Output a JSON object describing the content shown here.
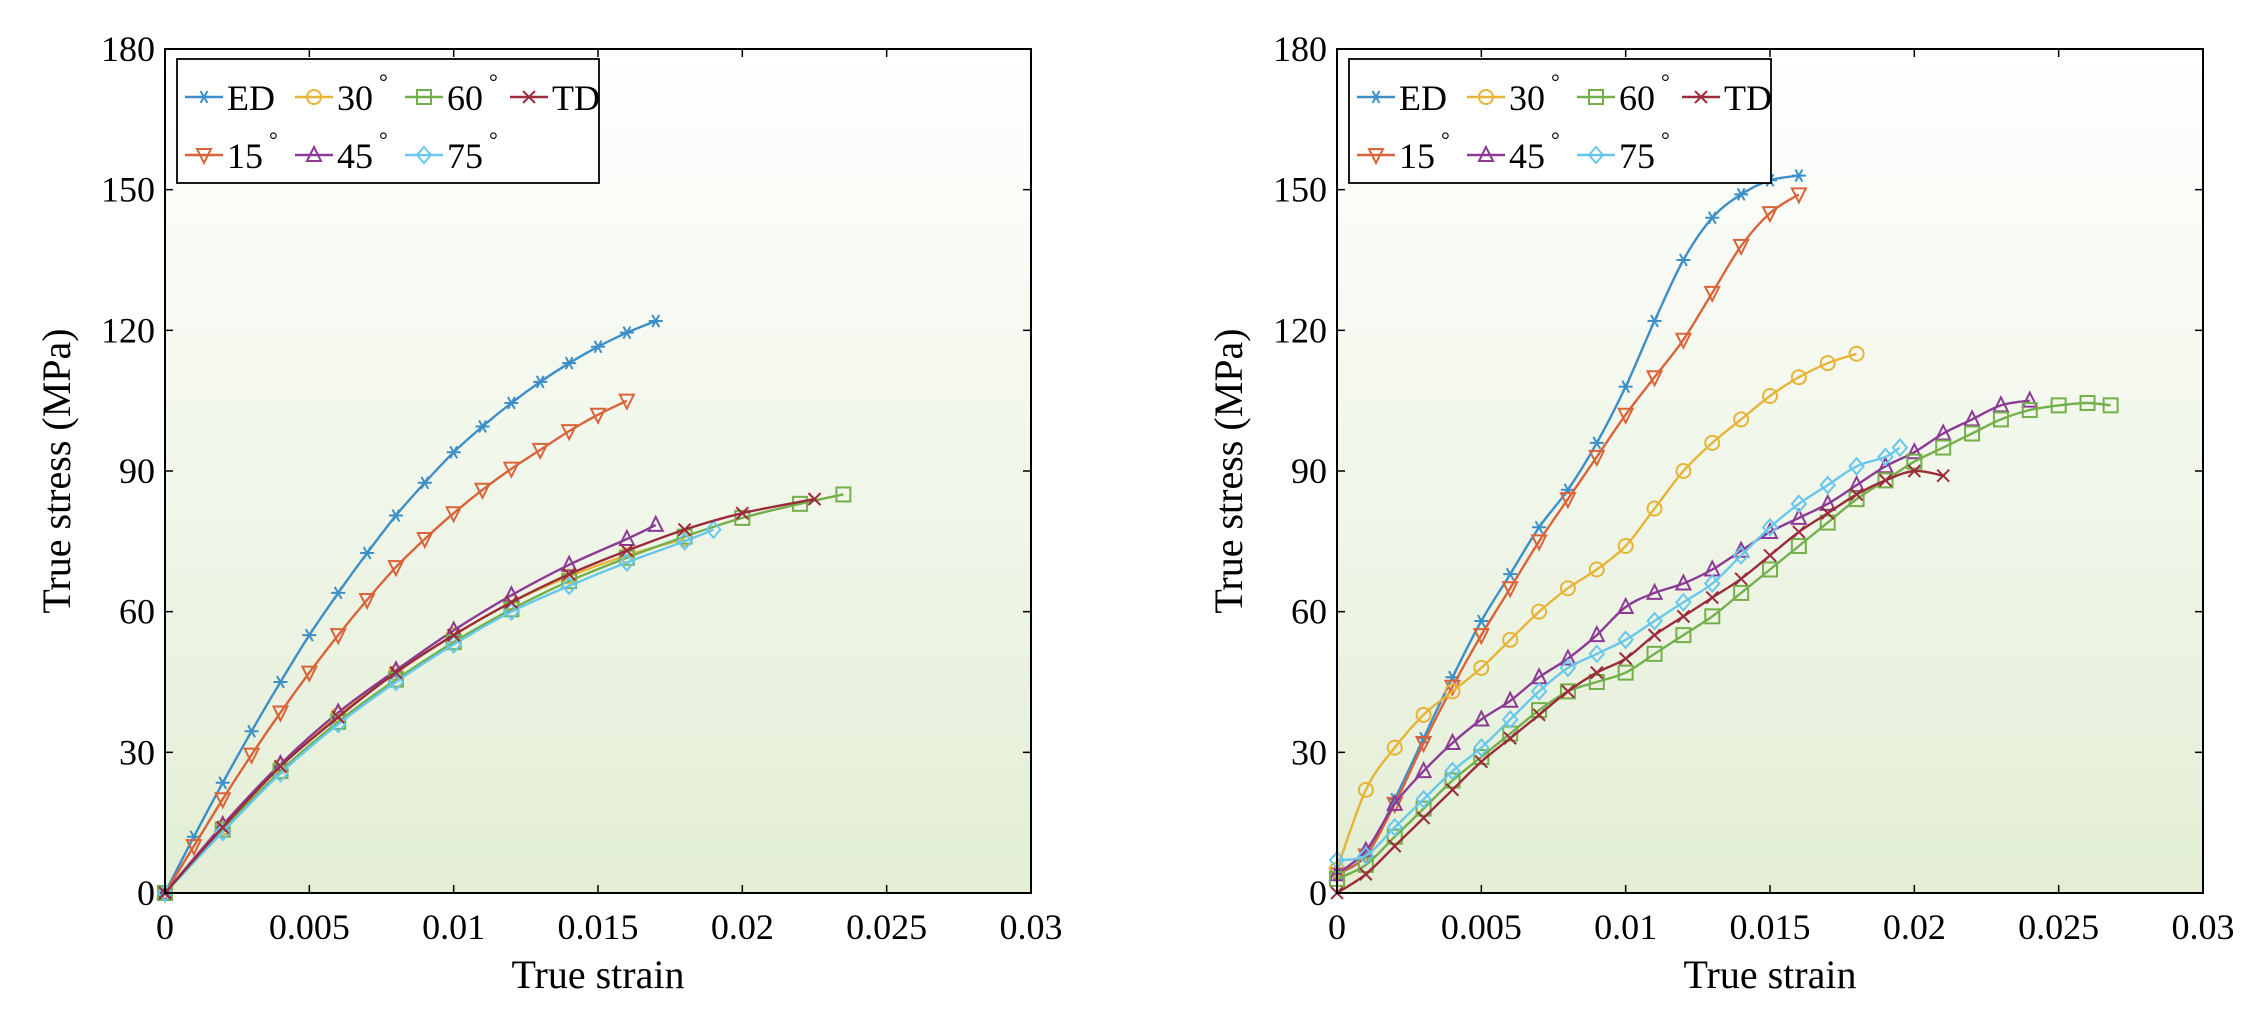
{
  "chart_data": [
    {
      "type": "line",
      "xlabel": "True strain",
      "ylabel": "True stress (MPa)",
      "xlim": [
        0,
        0.03
      ],
      "ylim": [
        0,
        180
      ],
      "xticks": [
        0,
        0.005,
        0.01,
        0.015,
        0.02,
        0.025,
        0.03
      ],
      "xtick_labels": [
        "0",
        "0.005",
        "0.01",
        "0.015",
        "0.02",
        "0.025",
        "0.03"
      ],
      "yticks": [
        0,
        30,
        60,
        90,
        120,
        150,
        180
      ],
      "ytick_labels": [
        "0",
        "30",
        "60",
        "90",
        "120",
        "150",
        "180"
      ],
      "grid": false,
      "legend_position": "top-left",
      "series": [
        {
          "name": "ED",
          "marker": "asterisk",
          "color": "#3c8fc8",
          "x": [
            0,
            0.001,
            0.002,
            0.003,
            0.004,
            0.005,
            0.006,
            0.007,
            0.008,
            0.009,
            0.01,
            0.011,
            0.012,
            0.013,
            0.014,
            0.015,
            0.016,
            0.017
          ],
          "y": [
            0,
            12,
            23.5,
            34.5,
            45,
            55,
            64,
            72.5,
            80.5,
            87.5,
            94,
            99.5,
            104.5,
            109,
            113,
            116.5,
            119.5,
            122
          ]
        },
        {
          "name": "15",
          "marker": "triangle-down",
          "color": "#d9643a",
          "x": [
            0,
            0.001,
            0.002,
            0.003,
            0.004,
            0.005,
            0.006,
            0.007,
            0.008,
            0.009,
            0.01,
            0.011,
            0.012,
            0.013,
            0.014,
            0.015,
            0.016
          ],
          "y": [
            0,
            10,
            20,
            29.5,
            38.5,
            47,
            55,
            62.5,
            69.5,
            75.5,
            81,
            86,
            90.5,
            94.5,
            98.5,
            102,
            105
          ]
        },
        {
          "name": "30",
          "marker": "circle",
          "color": "#e6b437",
          "x": [
            0,
            0.002,
            0.004,
            0.006,
            0.008,
            0.01,
            0.012,
            0.014,
            0.016,
            0.018
          ],
          "y": [
            0,
            14,
            27,
            38,
            47,
            55,
            62,
            67.5,
            72,
            75.5
          ]
        },
        {
          "name": "45",
          "marker": "triangle-up",
          "color": "#8c3a96",
          "x": [
            0,
            0.002,
            0.004,
            0.006,
            0.008,
            0.01,
            0.012,
            0.014,
            0.016,
            0.017
          ],
          "y": [
            0,
            14.5,
            27.5,
            38.5,
            47.5,
            56,
            63.5,
            70,
            75.5,
            78.5
          ]
        },
        {
          "name": "60",
          "marker": "square",
          "color": "#74b04a",
          "x": [
            0,
            0.002,
            0.004,
            0.006,
            0.008,
            0.01,
            0.012,
            0.014,
            0.016,
            0.018,
            0.02,
            0.022,
            0.0235
          ],
          "y": [
            0,
            13.5,
            26,
            36.5,
            45.5,
            53.5,
            60.5,
            66.5,
            71.5,
            76,
            80,
            83,
            85
          ]
        },
        {
          "name": "75",
          "marker": "diamond",
          "color": "#68c8ec",
          "x": [
            0,
            0.002,
            0.004,
            0.006,
            0.008,
            0.01,
            0.012,
            0.014,
            0.016,
            0.018,
            0.019
          ],
          "y": [
            0,
            13,
            25.5,
            36,
            45,
            53,
            60,
            65.5,
            70.5,
            75,
            77.5
          ]
        },
        {
          "name": "TD",
          "marker": "x",
          "color": "#9b2c3c",
          "x": [
            0,
            0.002,
            0.004,
            0.006,
            0.008,
            0.01,
            0.012,
            0.014,
            0.016,
            0.018,
            0.02,
            0.0225
          ],
          "y": [
            0,
            14,
            27,
            37.5,
            47,
            55,
            62,
            68,
            73,
            77.5,
            81,
            84
          ]
        }
      ]
    },
    {
      "type": "line",
      "xlabel": "True strain",
      "ylabel": "True stress (MPa)",
      "xlim": [
        0,
        0.03
      ],
      "ylim": [
        0,
        180
      ],
      "xticks": [
        0,
        0.005,
        0.01,
        0.015,
        0.02,
        0.025,
        0.03
      ],
      "xtick_labels": [
        "0",
        "0.005",
        "0.01",
        "0.015",
        "0.02",
        "0.025",
        "0.03"
      ],
      "yticks": [
        0,
        30,
        60,
        90,
        120,
        150,
        180
      ],
      "ytick_labels": [
        "0",
        "30",
        "60",
        "90",
        "120",
        "150",
        "180"
      ],
      "grid": false,
      "legend_position": "top-left",
      "series": [
        {
          "name": "ED",
          "marker": "asterisk",
          "color": "#3c8fc8",
          "x": [
            0,
            0.001,
            0.002,
            0.003,
            0.004,
            0.005,
            0.006,
            0.007,
            0.008,
            0.009,
            0.01,
            0.011,
            0.012,
            0.013,
            0.014,
            0.015,
            0.016
          ],
          "y": [
            4,
            8,
            20,
            33,
            46,
            58,
            68,
            78,
            86,
            96,
            108,
            122,
            135,
            144,
            149,
            152,
            153
          ]
        },
        {
          "name": "15",
          "marker": "triangle-down",
          "color": "#d9643a",
          "x": [
            0,
            0.001,
            0.002,
            0.003,
            0.004,
            0.005,
            0.006,
            0.007,
            0.008,
            0.009,
            0.01,
            0.011,
            0.012,
            0.013,
            0.014,
            0.015,
            0.016
          ],
          "y": [
            4,
            8,
            19,
            32,
            44,
            55,
            65,
            75,
            84,
            93,
            102,
            110,
            118,
            128,
            138,
            145,
            149
          ]
        },
        {
          "name": "30",
          "marker": "circle",
          "color": "#e6b437",
          "x": [
            0,
            0.001,
            0.002,
            0.003,
            0.004,
            0.005,
            0.006,
            0.007,
            0.008,
            0.009,
            0.01,
            0.011,
            0.012,
            0.013,
            0.014,
            0.015,
            0.016,
            0.017,
            0.018
          ],
          "y": [
            5,
            22,
            31,
            38,
            43,
            48,
            54,
            60,
            65,
            69,
            74,
            82,
            90,
            96,
            101,
            106,
            110,
            113,
            115
          ]
        },
        {
          "name": "45",
          "marker": "triangle-up",
          "color": "#8c3a96",
          "x": [
            0,
            0.001,
            0.002,
            0.003,
            0.004,
            0.005,
            0.006,
            0.007,
            0.008,
            0.009,
            0.01,
            0.011,
            0.012,
            0.013,
            0.014,
            0.015,
            0.016,
            0.017,
            0.018,
            0.019,
            0.02,
            0.021,
            0.022,
            0.023,
            0.024
          ],
          "y": [
            4,
            9,
            19,
            26,
            32,
            37,
            41,
            46,
            50,
            55,
            61,
            64,
            66,
            69,
            73,
            77,
            80,
            83,
            87,
            91,
            94,
            98,
            101,
            104,
            105
          ]
        },
        {
          "name": "60",
          "marker": "square",
          "color": "#74b04a",
          "x": [
            0,
            0.001,
            0.002,
            0.003,
            0.004,
            0.005,
            0.006,
            0.007,
            0.008,
            0.009,
            0.01,
            0.011,
            0.012,
            0.013,
            0.014,
            0.015,
            0.016,
            0.017,
            0.018,
            0.019,
            0.02,
            0.021,
            0.022,
            0.023,
            0.024,
            0.025,
            0.026,
            0.0268
          ],
          "y": [
            3,
            6,
            12,
            18,
            24,
            29,
            34,
            39,
            43,
            45,
            47,
            51,
            55,
            59,
            64,
            69,
            74,
            79,
            84,
            88,
            92,
            95,
            98,
            101,
            103,
            104,
            104.5,
            104
          ]
        },
        {
          "name": "75",
          "marker": "diamond",
          "color": "#68c8ec",
          "x": [
            0,
            0.001,
            0.002,
            0.003,
            0.004,
            0.005,
            0.006,
            0.007,
            0.008,
            0.009,
            0.01,
            0.011,
            0.012,
            0.013,
            0.014,
            0.015,
            0.016,
            0.017,
            0.018,
            0.019,
            0.0195
          ],
          "y": [
            7,
            8,
            14,
            20,
            26,
            31,
            37,
            43,
            48,
            51,
            54,
            58,
            62,
            66,
            72,
            78,
            83,
            87,
            91,
            93,
            95
          ]
        },
        {
          "name": "TD",
          "marker": "x",
          "color": "#9b2c3c",
          "x": [
            0,
            0.001,
            0.002,
            0.003,
            0.004,
            0.005,
            0.006,
            0.007,
            0.008,
            0.009,
            0.01,
            0.011,
            0.012,
            0.013,
            0.014,
            0.015,
            0.016,
            0.017,
            0.018,
            0.019,
            0.02,
            0.021
          ],
          "y": [
            0,
            4,
            10,
            16,
            22,
            28,
            33,
            38,
            43,
            47,
            50,
            55,
            59,
            63,
            67,
            72,
            77,
            81,
            85,
            88,
            90,
            89
          ]
        }
      ]
    }
  ]
}
